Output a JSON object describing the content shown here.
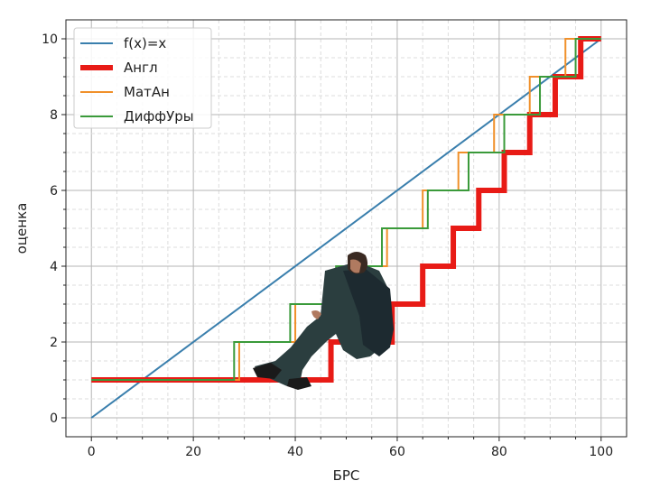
{
  "chart_data": {
    "type": "line",
    "title": "",
    "xlabel": "БРС",
    "ylabel": "оценка",
    "xlim": [
      -5,
      105
    ],
    "ylim": [
      -0.5,
      10.5
    ],
    "xticks": [
      0,
      20,
      40,
      60,
      80,
      100
    ],
    "yticks": [
      0,
      2,
      4,
      6,
      8,
      10
    ],
    "grid": "major and minor",
    "legend_position": "top-left",
    "series": [
      {
        "name": "f(x)=x",
        "color": "#3a7fad",
        "points": [
          [
            0,
            0
          ],
          [
            100,
            10
          ]
        ]
      },
      {
        "name": "Англ",
        "color": "#e81b16",
        "points": [
          [
            0,
            1
          ],
          [
            47,
            1
          ],
          [
            47,
            2
          ],
          [
            59,
            2
          ],
          [
            59,
            3
          ],
          [
            65,
            3
          ],
          [
            65,
            4
          ],
          [
            71,
            4
          ],
          [
            71,
            5
          ],
          [
            76,
            5
          ],
          [
            76,
            6
          ],
          [
            81,
            6
          ],
          [
            81,
            7
          ],
          [
            86,
            7
          ],
          [
            86,
            8
          ],
          [
            91,
            8
          ],
          [
            91,
            9
          ],
          [
            96,
            9
          ],
          [
            96,
            10
          ],
          [
            100,
            10
          ]
        ]
      },
      {
        "name": "МатАн",
        "color": "#f0902a",
        "points": [
          [
            0,
            1
          ],
          [
            29,
            1
          ],
          [
            29,
            2
          ],
          [
            40,
            2
          ],
          [
            40,
            3
          ],
          [
            50,
            3
          ],
          [
            50,
            4
          ],
          [
            58,
            4
          ],
          [
            58,
            5
          ],
          [
            65,
            5
          ],
          [
            65,
            6
          ],
          [
            72,
            6
          ],
          [
            72,
            7
          ],
          [
            79,
            7
          ],
          [
            79,
            8
          ],
          [
            86,
            8
          ],
          [
            86,
            9
          ],
          [
            93,
            9
          ],
          [
            93,
            10
          ],
          [
            100,
            10
          ]
        ]
      },
      {
        "name": "ДиффУры",
        "color": "#3a9a3a",
        "points": [
          [
            0,
            1
          ],
          [
            28,
            1
          ],
          [
            28,
            2
          ],
          [
            39,
            2
          ],
          [
            39,
            3
          ],
          [
            48,
            3
          ],
          [
            48,
            4
          ],
          [
            57,
            4
          ],
          [
            57,
            5
          ],
          [
            66,
            5
          ],
          [
            66,
            6
          ],
          [
            74,
            6
          ],
          [
            74,
            7
          ],
          [
            81,
            7
          ],
          [
            81,
            8
          ],
          [
            88,
            8
          ],
          [
            88,
            9
          ],
          [
            95,
            9
          ],
          [
            95,
            10
          ],
          [
            100,
            10
          ]
        ]
      }
    ]
  }
}
